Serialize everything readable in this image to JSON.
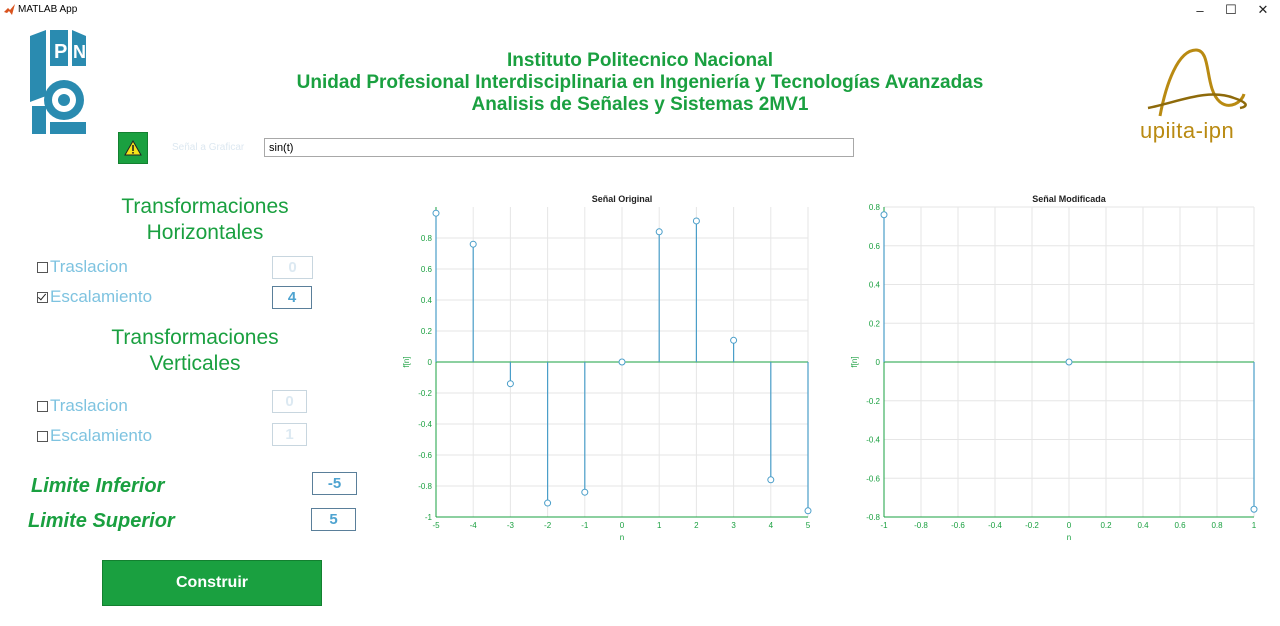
{
  "window": {
    "title": "MATLAB App",
    "minimize": "–",
    "maximize": "☐",
    "close": "✕"
  },
  "header": {
    "line1": "Instituto Politecnico Nacional",
    "line2": "Unidad Profesional Interdisciplinaria en Ingeniería y Tecnologías Avanzadas",
    "line3": "Analisis de Señales y Sistemas 2MV1"
  },
  "logos": {
    "right_text": "upiita-ipn"
  },
  "signal": {
    "label": "Señal a Graficar",
    "value": "sin(t)"
  },
  "horizontal": {
    "title_line1": "Transformaciones",
    "title_line2": "Horizontales",
    "traslacion": {
      "label": "Traslacion",
      "checked": false,
      "value": "0"
    },
    "escalamiento": {
      "label": "Escalamiento",
      "checked": true,
      "value": "4"
    }
  },
  "vertical": {
    "title_line1": "Transformaciones",
    "title_line2": "Verticales",
    "traslacion": {
      "label": "Traslacion",
      "checked": false,
      "value": "0"
    },
    "escalamiento": {
      "label": "Escalamiento",
      "checked": false,
      "value": "1"
    }
  },
  "limits": {
    "lower_label": "Limite Inferior",
    "lower_value": "-5",
    "upper_label": "Limite Superior",
    "upper_value": "5"
  },
  "build_button": "Construir",
  "colors": {
    "accent_green": "#1aa040",
    "stem_blue": "#4a9ec9",
    "light_blue": "#7ec3e0"
  },
  "chart_data": [
    {
      "type": "stem",
      "title": "Señal Original",
      "xlabel": "n",
      "ylabel": "f[n]",
      "xlim": [
        -5,
        5
      ],
      "ylim": [
        -1,
        1
      ],
      "xticks": [
        "-5",
        "-4",
        "-3",
        "-2",
        "-1",
        "0",
        "1",
        "2",
        "3",
        "4",
        "5"
      ],
      "yticks": [
        "-1",
        "-0.8",
        "-0.6",
        "-0.4",
        "-0.2",
        "0",
        "0.2",
        "0.4",
        "0.6",
        "0.8"
      ],
      "x": [
        -5,
        -4,
        -3,
        -2,
        -1,
        0,
        1,
        2,
        3,
        4,
        5
      ],
      "y": [
        0.96,
        0.76,
        -0.14,
        -0.91,
        -0.84,
        0,
        0.84,
        0.91,
        0.14,
        -0.76,
        -0.96
      ],
      "grid": true
    },
    {
      "type": "stem",
      "title": "Señal Modificada",
      "xlabel": "n",
      "ylabel": "f[n]",
      "xlim": [
        -1,
        1
      ],
      "ylim": [
        -0.8,
        0.8
      ],
      "xticks": [
        "-1",
        "-0.8",
        "-0.6",
        "-0.4",
        "-0.2",
        "0",
        "0.2",
        "0.4",
        "0.6",
        "0.8",
        "1"
      ],
      "yticks": [
        "-0.8",
        "-0.6",
        "-0.4",
        "-0.2",
        "0",
        "0.2",
        "0.4",
        "0.6",
        "0.8"
      ],
      "x": [
        -1,
        0,
        1
      ],
      "y": [
        0.76,
        0,
        -0.76
      ],
      "grid": true
    }
  ]
}
